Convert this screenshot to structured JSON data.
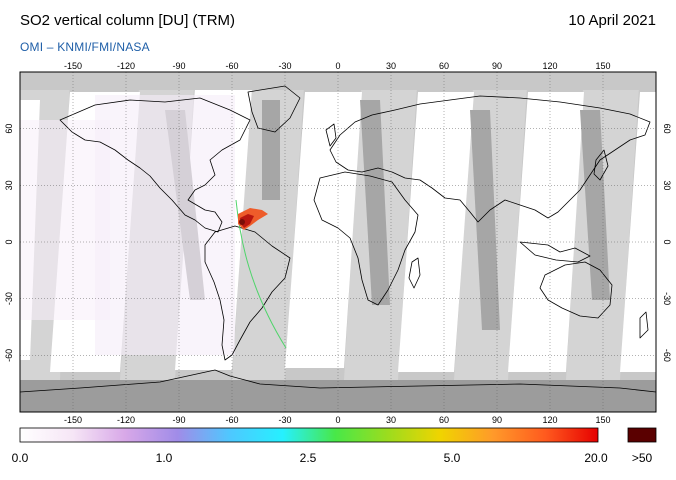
{
  "header": {
    "title": "SO2 vertical column [DU] (TRM)",
    "date": "10 April 2021",
    "credit": "OMI  –  KNMI/FMI/NASA"
  },
  "map": {
    "projection": "equirectangular",
    "lon_range": [
      -180,
      180
    ],
    "lat_range": [
      -90,
      90
    ],
    "lon_ticks": [
      "-150",
      "-120",
      "-90",
      "-60",
      "-30",
      "0",
      "30",
      "60",
      "90",
      "120",
      "150"
    ],
    "lat_ticks": [
      "60",
      "30",
      "0",
      "-30",
      "-60"
    ],
    "grid": true,
    "colors": {
      "no_data": "#c8c8c8",
      "swath_light": "#d4d4d4",
      "swath_dark": "#a6a6a6",
      "land_outline": "#000000"
    },
    "plume": {
      "location_lon_lat": [
        -60,
        13
      ],
      "color_core": "#b8170f",
      "color_edge": "#ee5c2a"
    }
  },
  "colorbar": {
    "labels": [
      "0.0",
      "1.0",
      "2.5",
      "5.0",
      "20.0"
    ],
    "overflow_label": ">50",
    "overflow_color": "#5a0000",
    "gradient_colors": [
      "#ffffff",
      "#f6e6f6",
      "#d8a8e8",
      "#a08ce8",
      "#4ec8ff",
      "#26f0ff",
      "#48e848",
      "#9cdc1e",
      "#f0d400",
      "#ff9a2a",
      "#ff5a1e",
      "#e60000"
    ]
  }
}
